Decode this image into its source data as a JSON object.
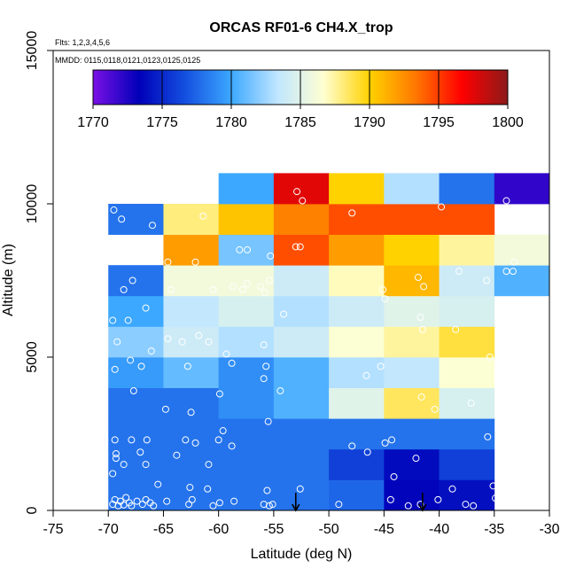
{
  "chart_data": {
    "type": "heatmap",
    "title": "ORCAS RF01-6 CH4.X_trop",
    "subtitle_flights": "Flts: 1,2,3,4,5,6",
    "subtitle_dates": "MMDD: 0115,0118,0121,0123,0125,0125",
    "xlabel": "Latitude (deg N)",
    "ylabel": "Altitude (m)",
    "xlim": [
      -75,
      -30
    ],
    "ylim": [
      0,
      15000
    ],
    "x_ticks": [
      -75,
      -70,
      -65,
      -60,
      -55,
      -50,
      -45,
      -40,
      -35,
      -30
    ],
    "y_ticks": [
      0,
      5000,
      10000,
      15000
    ],
    "color_scale": {
      "min": 1770,
      "max": 1800,
      "ticks": [
        1770,
        1775,
        1780,
        1785,
        1790,
        1795,
        1800
      ],
      "stops": [
        "#7a10e6",
        "#0000b8",
        "#1450e0",
        "#3ca8ff",
        "#c0e6ff",
        "#ffffd2",
        "#ffd200",
        "#ff7800",
        "#ff0000",
        "#8c1a1a"
      ]
    },
    "lat_edges": [
      -70,
      -65,
      -60,
      -55,
      -50,
      -45,
      -40,
      -35,
      -30
    ],
    "alt_edges": [
      0,
      1000,
      2000,
      3000,
      4000,
      5000,
      6000,
      7000,
      8000,
      9000,
      10000,
      11000
    ],
    "cells": [
      [
        1778.0,
        1778.0,
        1778.0,
        1778.0,
        1777.5,
        1773.5,
        1774.0,
        null
      ],
      [
        1778.0,
        1778.0,
        1778.0,
        1778.0,
        1776.0,
        1773.8,
        1776.0,
        null
      ],
      [
        1778.0,
        1778.0,
        1778.0,
        1778.0,
        1778.0,
        1778.0,
        1778.0,
        null
      ],
      [
        1778.0,
        1778.0,
        1779.0,
        1780.5,
        1785.0,
        1788.5,
        1784.5,
        null
      ],
      [
        1779.5,
        1781.0,
        1779.0,
        1780.5,
        1783.0,
        1783.5,
        1786.5,
        null
      ],
      [
        1782.0,
        1784.0,
        1783.0,
        1784.0,
        1786.5,
        1787.5,
        1789.0,
        null
      ],
      [
        1780.0,
        1783.5,
        1784.5,
        1783.0,
        1784.0,
        1785.0,
        1784.5,
        null
      ],
      [
        1778.0,
        1786.0,
        1786.0,
        1784.0,
        1787.0,
        1791.0,
        1784.0,
        1780.5
      ],
      [
        null,
        1792.0,
        1781.5,
        1794.5,
        1792.0,
        1790.0,
        1787.5,
        1786.0
      ],
      [
        1778.0,
        1788.0,
        1790.5,
        1793.0,
        1794.5,
        1794.5,
        1794.5,
        null
      ],
      [
        null,
        null,
        1780.0,
        1797.5,
        1790.0,
        1783.0,
        1778.0,
        1772.0
      ]
    ],
    "observations": [
      [
        -69.6,
        200
      ],
      [
        -69.4,
        350
      ],
      [
        -69.1,
        150
      ],
      [
        -68.9,
        300
      ],
      [
        -68.6,
        180
      ],
      [
        -68.4,
        420
      ],
      [
        -68.1,
        250
      ],
      [
        -67.9,
        150
      ],
      [
        -67.4,
        300
      ],
      [
        -66.9,
        200
      ],
      [
        -66.6,
        350
      ],
      [
        -66.2,
        250
      ],
      [
        -65.9,
        150
      ],
      [
        -64.7,
        300
      ],
      [
        -62.7,
        200
      ],
      [
        -62.4,
        350
      ],
      [
        -60.5,
        150
      ],
      [
        -59.9,
        250
      ],
      [
        -58.6,
        300
      ],
      [
        -55.9,
        200
      ],
      [
        -55.4,
        150
      ],
      [
        -55.1,
        200
      ],
      [
        -49.1,
        200
      ],
      [
        -44.4,
        350
      ],
      [
        -42.8,
        150
      ],
      [
        -41.7,
        200
      ],
      [
        -40.1,
        350
      ],
      [
        -37.6,
        200
      ],
      [
        -36.9,
        150
      ],
      [
        -34.9,
        400
      ],
      [
        -69.6,
        1200
      ],
      [
        -69.3,
        1700
      ],
      [
        -68.6,
        1500
      ],
      [
        -67.1,
        1900
      ],
      [
        -66.6,
        1500
      ],
      [
        -65.5,
        850
      ],
      [
        -62.6,
        750
      ],
      [
        -61.0,
        700
      ],
      [
        -55.6,
        650
      ],
      [
        -52.6,
        700
      ],
      [
        -44.1,
        1100
      ],
      [
        -42.1,
        1700
      ],
      [
        -38.8,
        700
      ],
      [
        -35.1,
        800
      ],
      [
        -69.4,
        2300
      ],
      [
        -69.3,
        1850
      ],
      [
        -67.9,
        2300
      ],
      [
        -66.5,
        2300
      ],
      [
        -63.8,
        1800
      ],
      [
        -63.0,
        2300
      ],
      [
        -62.1,
        2200
      ],
      [
        -60.0,
        2300
      ],
      [
        -60.9,
        1500
      ],
      [
        -59.6,
        2600
      ],
      [
        -58.8,
        2100
      ],
      [
        -55.5,
        2900
      ],
      [
        -47.9,
        2100
      ],
      [
        -46.5,
        1900
      ],
      [
        -44.9,
        2200
      ],
      [
        -44.3,
        2300
      ],
      [
        -40.4,
        3300
      ],
      [
        -37.1,
        3500
      ],
      [
        -35.6,
        2400
      ],
      [
        -67.7,
        3900
      ],
      [
        -64.8,
        3300
      ],
      [
        -62.5,
        3200
      ],
      [
        -59.9,
        3800
      ],
      [
        -54.4,
        3900
      ],
      [
        -41.6,
        3700
      ],
      [
        -69.4,
        4600
      ],
      [
        -68.0,
        4900
      ],
      [
        -67.0,
        4700
      ],
      [
        -62.8,
        4700
      ],
      [
        -58.8,
        4800
      ],
      [
        -55.9,
        4300
      ],
      [
        -55.7,
        4700
      ],
      [
        -46.6,
        4400
      ],
      [
        -45.3,
        4700
      ],
      [
        -35.4,
        5000
      ],
      [
        -69.2,
        5500
      ],
      [
        -66.1,
        5200
      ],
      [
        -64.6,
        5600
      ],
      [
        -63.3,
        5500
      ],
      [
        -61.8,
        5700
      ],
      [
        -60.9,
        5500
      ],
      [
        -59.3,
        5100
      ],
      [
        -55.9,
        5400
      ],
      [
        -41.5,
        5900
      ],
      [
        -38.5,
        5900
      ],
      [
        -69.6,
        6200
      ],
      [
        -68.2,
        6200
      ],
      [
        -66.6,
        6600
      ],
      [
        -54.1,
        6400
      ],
      [
        -41.7,
        6300
      ],
      [
        -68.6,
        7200
      ],
      [
        -67.8,
        7500
      ],
      [
        -64.3,
        7200
      ],
      [
        -60.5,
        7200
      ],
      [
        -58.7,
        7300
      ],
      [
        -57.8,
        7200
      ],
      [
        -57.4,
        7400
      ],
      [
        -56.2,
        7300
      ],
      [
        -55.8,
        7100
      ],
      [
        -55.4,
        7500
      ],
      [
        -45.1,
        7200
      ],
      [
        -44.9,
        6900
      ],
      [
        -41.9,
        7600
      ],
      [
        -41.4,
        7300
      ],
      [
        -38.2,
        7800
      ],
      [
        -35.7,
        7500
      ],
      [
        -33.9,
        7800
      ],
      [
        -33.3,
        7800
      ],
      [
        -64.6,
        8100
      ],
      [
        -62.1,
        8100
      ],
      [
        -58.1,
        8500
      ],
      [
        -57.4,
        8500
      ],
      [
        -55.3,
        8300
      ],
      [
        -53.0,
        8600
      ],
      [
        -52.6,
        8600
      ],
      [
        -33.2,
        8100
      ],
      [
        -69.5,
        9800
      ],
      [
        -68.8,
        9500
      ],
      [
        -66.0,
        9300
      ],
      [
        -61.4,
        9600
      ],
      [
        -52.4,
        10100
      ],
      [
        -52.9,
        10400
      ],
      [
        -47.9,
        9700
      ],
      [
        -39.8,
        9900
      ],
      [
        -33.9,
        10100
      ]
    ],
    "annotations": [
      {
        "type": "arrow-down",
        "lat": -53,
        "label": ""
      },
      {
        "type": "arrow-down",
        "lat": -41.5,
        "label": ""
      }
    ]
  }
}
